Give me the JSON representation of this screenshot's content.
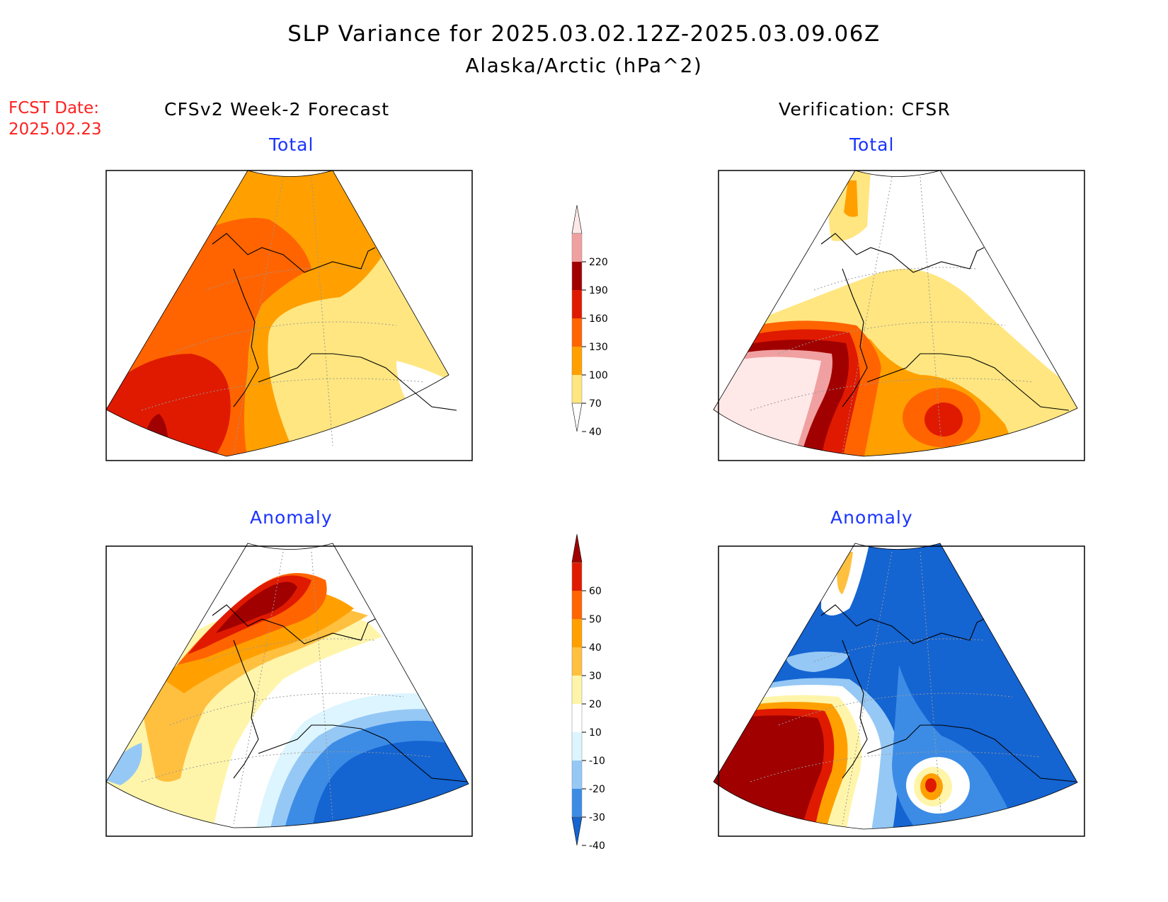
{
  "title": "SLP Variance for 2025.03.02.12Z-2025.03.09.06Z",
  "subtitle": "Alaska/Arctic (hPa^2)",
  "forecast_date": {
    "label": "FCST Date:",
    "value": "2025.02.23"
  },
  "columns": {
    "left": "CFSv2 Week-2 Forecast",
    "right": "Verification: CFSR"
  },
  "panels": {
    "forecast_total": "Total",
    "verification_total": "Total",
    "forecast_anomaly": "Anomaly",
    "verification_anomaly": "Anomaly"
  },
  "total_colorbar": {
    "ticks": [
      "40",
      "70",
      "100",
      "130",
      "160",
      "190",
      "220"
    ],
    "colors": [
      "#ffffff",
      "#ffe680",
      "#ffa000",
      "#ff6400",
      "#e01a00",
      "#a00000",
      "#f0a0a0",
      "#ffe8e8"
    ]
  },
  "anomaly_colorbar": {
    "ticks": [
      "-40",
      "-30",
      "-20",
      "-10",
      "10",
      "20",
      "30",
      "40",
      "50",
      "60"
    ],
    "colors": [
      "#1464d2",
      "#3c8ce6",
      "#96c8f5",
      "#dcf5ff",
      "#ffffff",
      "#fff5aa",
      "#ffc040",
      "#ffa000",
      "#ff6400",
      "#e01a00",
      "#a00000"
    ]
  }
}
